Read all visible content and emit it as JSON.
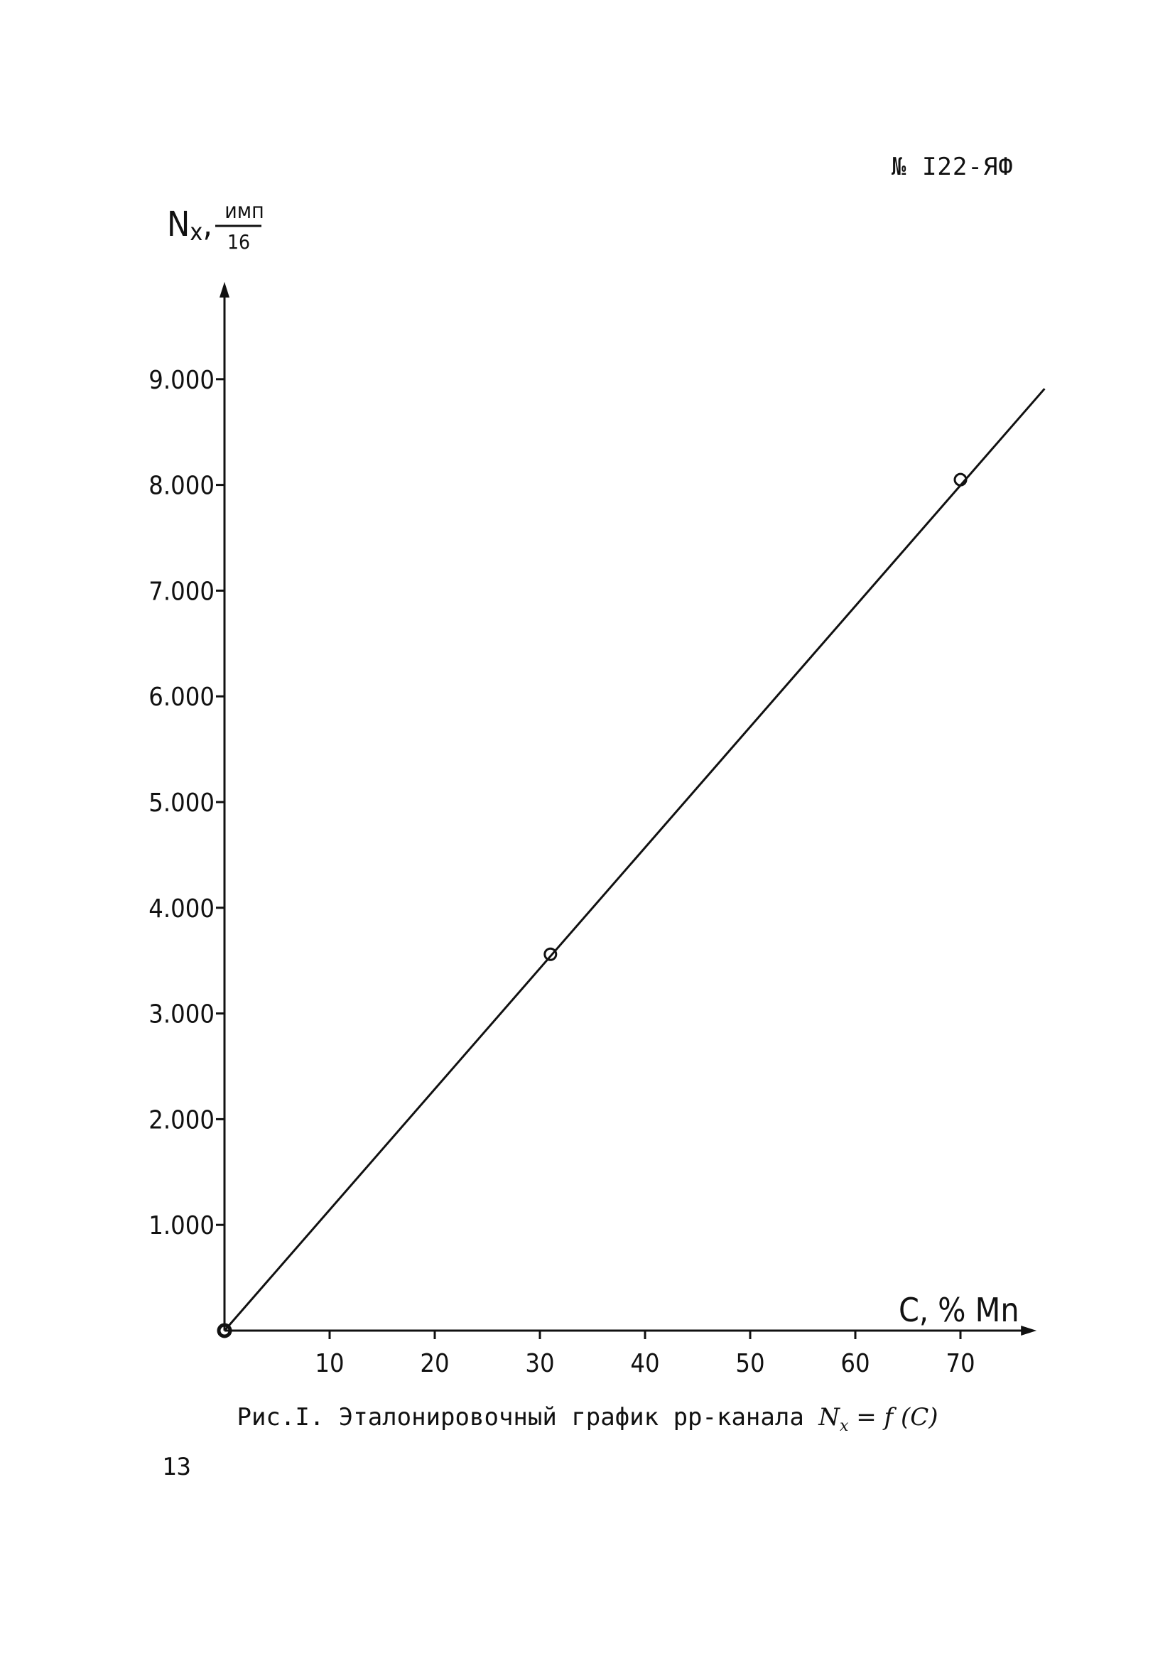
{
  "document": {
    "number": "№ I22-ЯФ",
    "page_number": "13",
    "caption_prefix": "Рис.I. Эталонировочный график pp-канала ",
    "caption_formula": "N",
    "caption_formula_sub": "x",
    "caption_formula_rest": " = f (C)"
  },
  "chart_data": {
    "type": "line",
    "ylabel_main": "N",
    "ylabel_sub": "x",
    "ylabel_unit_num": "имп",
    "ylabel_unit_den": "16",
    "xlabel": "C, % Mn",
    "xlim": [
      0,
      74
    ],
    "ylim": [
      0,
      9800
    ],
    "x_ticks": [
      10,
      20,
      30,
      40,
      50,
      60,
      70
    ],
    "x_tick_labels": [
      "10",
      "20",
      "30",
      "40",
      "50",
      "60",
      "70"
    ],
    "y_ticks": [
      1000,
      2000,
      3000,
      4000,
      5000,
      6000,
      7000,
      8000,
      9000
    ],
    "y_tick_labels": [
      "1.000",
      "2.000",
      "3.000",
      "4.000",
      "5.000",
      "6.000",
      "7.000",
      "8.000",
      "9.000"
    ],
    "points": [
      {
        "x": 0,
        "y": 0
      },
      {
        "x": 31,
        "y": 3560
      },
      {
        "x": 70,
        "y": 8050
      }
    ],
    "line": {
      "x": [
        0,
        78
      ],
      "y": [
        0,
        8910
      ]
    },
    "grid": false,
    "color": "#111111"
  }
}
